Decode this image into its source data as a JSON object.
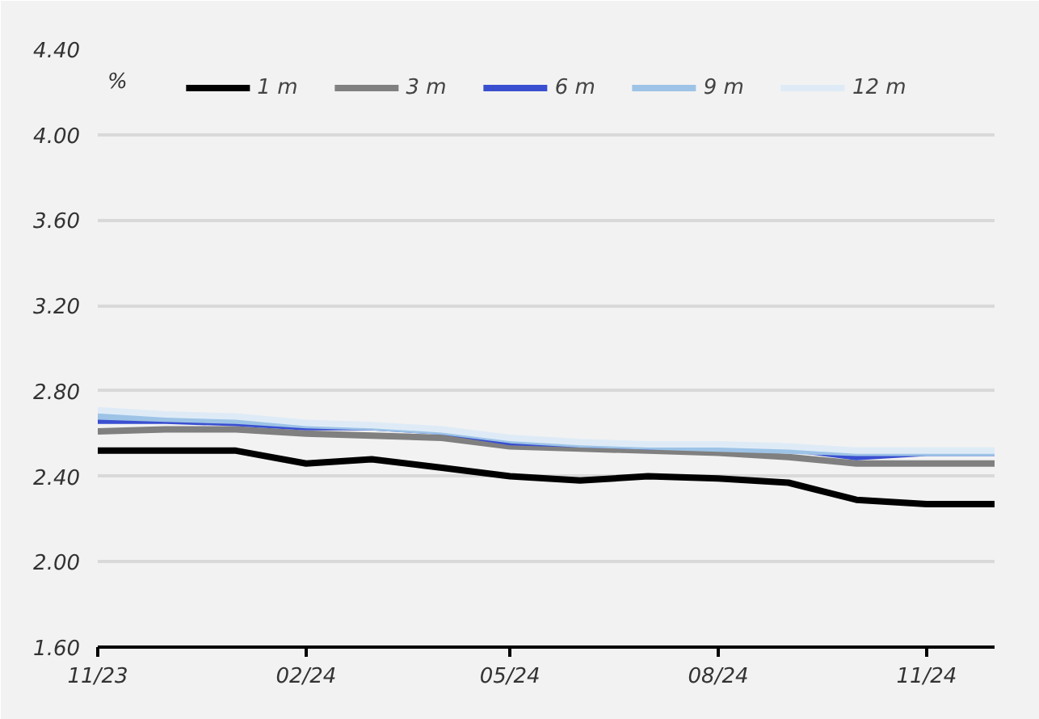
{
  "chart_data": {
    "type": "line",
    "ylabel": "%",
    "x": [
      "2023-11",
      "2023-12",
      "2024-01",
      "2024-02",
      "2024-03",
      "2024-04",
      "2024-05",
      "2024-06",
      "2024-07",
      "2024-08",
      "2024-09",
      "2024-10",
      "2024-11",
      "2024-12"
    ],
    "series": [
      {
        "name": "1 m",
        "color": "#000000",
        "values": [
          2.52,
          2.52,
          2.52,
          2.46,
          2.48,
          2.44,
          2.4,
          2.38,
          2.4,
          2.39,
          2.37,
          2.29,
          2.27,
          2.27
        ]
      },
      {
        "name": "3 m",
        "color": "#808080",
        "values": [
          2.61,
          2.62,
          2.62,
          2.6,
          2.59,
          2.58,
          2.54,
          2.53,
          2.52,
          2.51,
          2.49,
          2.46,
          2.46,
          2.46
        ]
      },
      {
        "name": "6 m",
        "color": "#3a4fd0",
        "values": [
          2.66,
          2.66,
          2.65,
          2.63,
          2.63,
          2.61,
          2.56,
          2.55,
          2.54,
          2.54,
          2.53,
          2.49,
          2.51,
          2.51
        ]
      },
      {
        "name": "9 m",
        "color": "#9dc3e6",
        "values": [
          2.68,
          2.67,
          2.66,
          2.64,
          2.63,
          2.61,
          2.57,
          2.55,
          2.54,
          2.53,
          2.52,
          2.51,
          2.51,
          2.51
        ]
      },
      {
        "name": "12 m",
        "color": "#deebf7",
        "values": [
          2.71,
          2.69,
          2.68,
          2.65,
          2.64,
          2.62,
          2.58,
          2.56,
          2.55,
          2.55,
          2.54,
          2.52,
          2.52,
          2.52
        ]
      }
    ],
    "xlim": [
      "2023-11",
      "2024-12"
    ],
    "xticks": [
      {
        "value": "2023-11",
        "label": "11/23"
      },
      {
        "value": "2024-02",
        "label": "02/24"
      },
      {
        "value": "2024-05",
        "label": "05/24"
      },
      {
        "value": "2024-08",
        "label": "08/24"
      },
      {
        "value": "2024-11",
        "label": "11/24"
      }
    ],
    "ylim": [
      1.6,
      4.4
    ],
    "yticks": [
      {
        "value": 1.6,
        "label": "1.60"
      },
      {
        "value": 2.0,
        "label": "2.00"
      },
      {
        "value": 2.4,
        "label": "2.40"
      },
      {
        "value": 2.8,
        "label": "2.80"
      },
      {
        "value": 3.2,
        "label": "3.20"
      },
      {
        "value": 3.6,
        "label": "3.60"
      },
      {
        "value": 4.0,
        "label": "4.00"
      },
      {
        "value": 4.4,
        "label": "4.40"
      }
    ],
    "grid": "y",
    "legend": "top",
    "line_style": "solid"
  }
}
